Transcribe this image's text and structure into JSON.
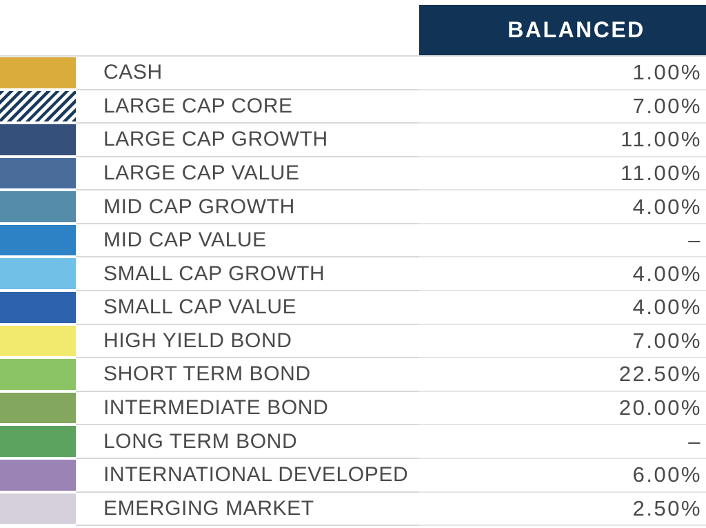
{
  "header": {
    "column_label": "BALANCED",
    "background": "#113355",
    "text_color": "#FFFFFF"
  },
  "table": {
    "rows": [
      {
        "label": "CASH",
        "value": "1.00%",
        "swatch": {
          "type": "solid",
          "color": "#D9AC3C"
        }
      },
      {
        "label": "LARGE CAP CORE",
        "value": "7.00%",
        "swatch": {
          "type": "diagonal-stripes",
          "color": "#1A3A5E",
          "background": "#FFFFFF"
        }
      },
      {
        "label": "LARGE CAP GROWTH",
        "value": "11.00%",
        "swatch": {
          "type": "solid",
          "color": "#35507B"
        }
      },
      {
        "label": "LARGE CAP VALUE",
        "value": "11.00%",
        "swatch": {
          "type": "solid",
          "color": "#4A6C9B"
        }
      },
      {
        "label": "MID CAP GROWTH",
        "value": "4.00%",
        "swatch": {
          "type": "solid",
          "color": "#548CA9"
        }
      },
      {
        "label": "MID CAP VALUE",
        "value": "–",
        "swatch": {
          "type": "solid",
          "color": "#2C82C4"
        }
      },
      {
        "label": "SMALL CAP GROWTH",
        "value": "4.00%",
        "swatch": {
          "type": "solid",
          "color": "#70C0E8"
        }
      },
      {
        "label": "SMALL CAP VALUE",
        "value": "4.00%",
        "swatch": {
          "type": "solid",
          "color": "#2D63AE"
        }
      },
      {
        "label": "HIGH YIELD BOND",
        "value": "7.00%",
        "swatch": {
          "type": "solid",
          "color": "#F2EA6E"
        }
      },
      {
        "label": "SHORT TERM BOND",
        "value": "22.50%",
        "swatch": {
          "type": "solid",
          "color": "#8BC464"
        }
      },
      {
        "label": "INTERMEDIATE BOND",
        "value": "20.00%",
        "swatch": {
          "type": "solid",
          "color": "#84A75F"
        }
      },
      {
        "label": "LONG TERM BOND",
        "value": "–",
        "swatch": {
          "type": "solid",
          "color": "#5CA360"
        }
      },
      {
        "label": "INTERNATIONAL DEVELOPED",
        "value": "6.00%",
        "swatch": {
          "type": "solid",
          "color": "#9C83B5"
        }
      },
      {
        "label": "EMERGING MARKET",
        "value": "2.50%",
        "swatch": {
          "type": "solid",
          "color": "#D6D0DC"
        }
      }
    ]
  },
  "chart_data": {
    "type": "table",
    "title": "BALANCED",
    "categories": [
      "CASH",
      "LARGE CAP CORE",
      "LARGE CAP GROWTH",
      "LARGE CAP VALUE",
      "MID CAP GROWTH",
      "MID CAP VALUE",
      "SMALL CAP GROWTH",
      "SMALL CAP VALUE",
      "HIGH YIELD BOND",
      "SHORT TERM BOND",
      "INTERMEDIATE BOND",
      "LONG TERM BOND",
      "INTERNATIONAL DEVELOPED",
      "EMERGING MARKET"
    ],
    "series": [
      {
        "name": "BALANCED",
        "values": [
          1.0,
          7.0,
          11.0,
          11.0,
          4.0,
          null,
          4.0,
          4.0,
          7.0,
          22.5,
          20.0,
          null,
          6.0,
          2.5
        ]
      }
    ],
    "value_format": "percent",
    "null_display": "–",
    "swatch_colors": [
      "#D9AC3C",
      "diagonal-stripes:#1A3A5E/#FFFFFF",
      "#35507B",
      "#4A6C9B",
      "#548CA9",
      "#2C82C4",
      "#70C0E8",
      "#2D63AE",
      "#F2EA6E",
      "#8BC464",
      "#84A75F",
      "#5CA360",
      "#9C83B5",
      "#D6D0DC"
    ]
  }
}
